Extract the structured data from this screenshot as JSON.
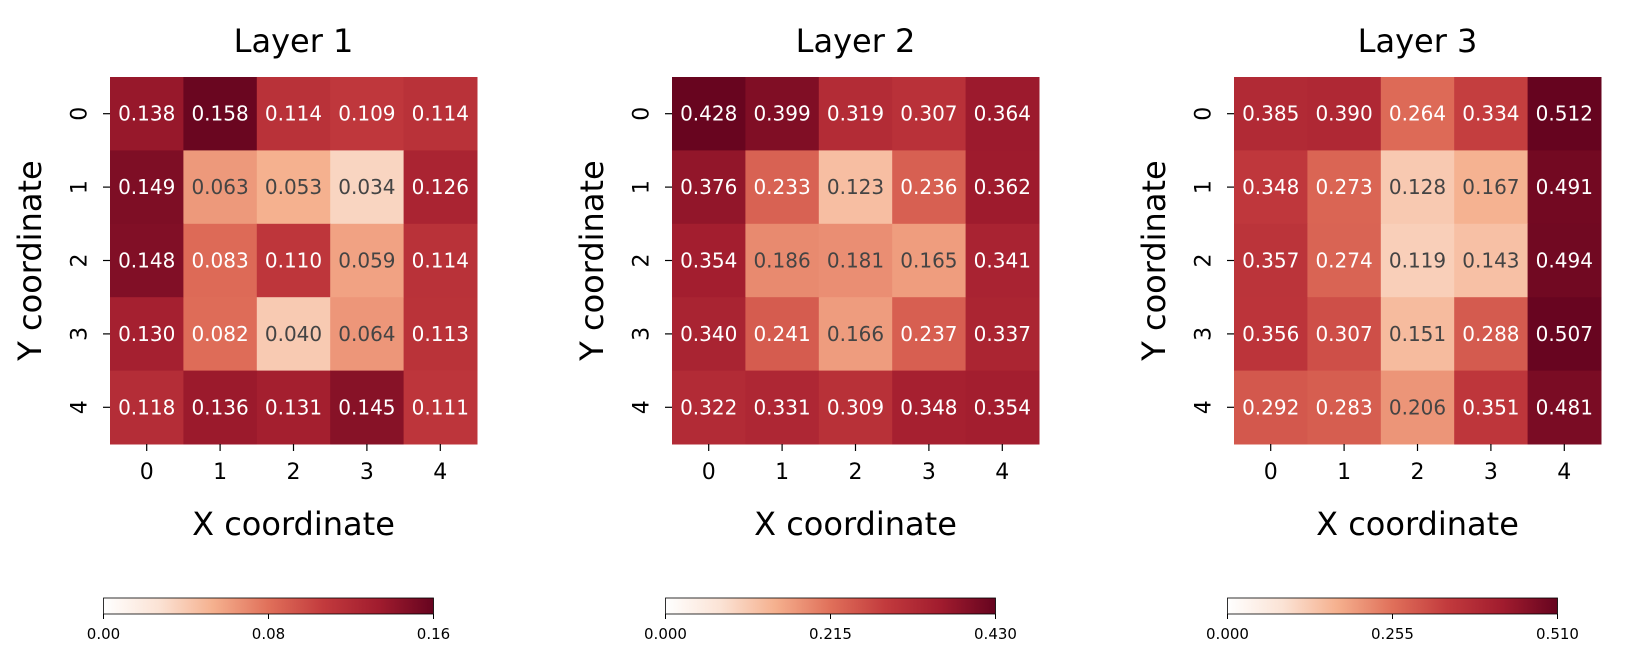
{
  "chart_data": [
    {
      "type": "heatmap",
      "title": "Layer 1",
      "xlabel": "X coordinate",
      "ylabel": "Y coordinate",
      "x_ticks": [
        "0",
        "1",
        "2",
        "3",
        "4"
      ],
      "y_ticks": [
        "0",
        "1",
        "2",
        "3",
        "4"
      ],
      "values": [
        [
          "0.138",
          "0.158",
          "0.114",
          "0.109",
          "0.114"
        ],
        [
          "0.149",
          "0.063",
          "0.053",
          "0.034",
          "0.126"
        ],
        [
          "0.148",
          "0.083",
          "0.110",
          "0.059",
          "0.114"
        ],
        [
          "0.130",
          "0.082",
          "0.040",
          "0.064",
          "0.113"
        ],
        [
          "0.118",
          "0.136",
          "0.131",
          "0.145",
          "0.111"
        ]
      ],
      "vmin": 0,
      "vmax": 0.16,
      "colorbar_ticks": [
        "0.00",
        "0.08",
        "0.16"
      ]
    },
    {
      "type": "heatmap",
      "title": "Layer 2",
      "xlabel": "X coordinate",
      "ylabel": "Y coordinate",
      "x_ticks": [
        "0",
        "1",
        "2",
        "3",
        "4"
      ],
      "y_ticks": [
        "0",
        "1",
        "2",
        "3",
        "4"
      ],
      "values": [
        [
          "0.428",
          "0.399",
          "0.319",
          "0.307",
          "0.364"
        ],
        [
          "0.376",
          "0.233",
          "0.123",
          "0.236",
          "0.362"
        ],
        [
          "0.354",
          "0.186",
          "0.181",
          "0.165",
          "0.341"
        ],
        [
          "0.340",
          "0.241",
          "0.166",
          "0.237",
          "0.337"
        ],
        [
          "0.322",
          "0.331",
          "0.309",
          "0.348",
          "0.354"
        ]
      ],
      "vmin": 0,
      "vmax": 0.43,
      "colorbar_ticks": [
        "0.000",
        "0.215",
        "0.430"
      ]
    },
    {
      "type": "heatmap",
      "title": "Layer 3",
      "xlabel": "X coordinate",
      "ylabel": "Y coordinate",
      "x_ticks": [
        "0",
        "1",
        "2",
        "3",
        "4"
      ],
      "y_ticks": [
        "0",
        "1",
        "2",
        "3",
        "4"
      ],
      "values": [
        [
          "0.385",
          "0.390",
          "0.264",
          "0.334",
          "0.512"
        ],
        [
          "0.348",
          "0.273",
          "0.128",
          "0.167",
          "0.491"
        ],
        [
          "0.357",
          "0.274",
          "0.119",
          "0.143",
          "0.494"
        ],
        [
          "0.356",
          "0.307",
          "0.151",
          "0.288",
          "0.507"
        ],
        [
          "0.292",
          "0.283",
          "0.206",
          "0.351",
          "0.481"
        ]
      ],
      "vmin": 0,
      "vmax": 0.51,
      "colorbar_ticks": [
        "0.000",
        "0.255",
        "0.510"
      ]
    }
  ],
  "colormap": {
    "stops": [
      "#ffffff",
      "#fbe3d5",
      "#f5b08e",
      "#e0705a",
      "#c23a3d",
      "#a11c2e",
      "#66041f"
    ],
    "dark_text_color": "#444444",
    "light_text_color": "#ffffff"
  }
}
